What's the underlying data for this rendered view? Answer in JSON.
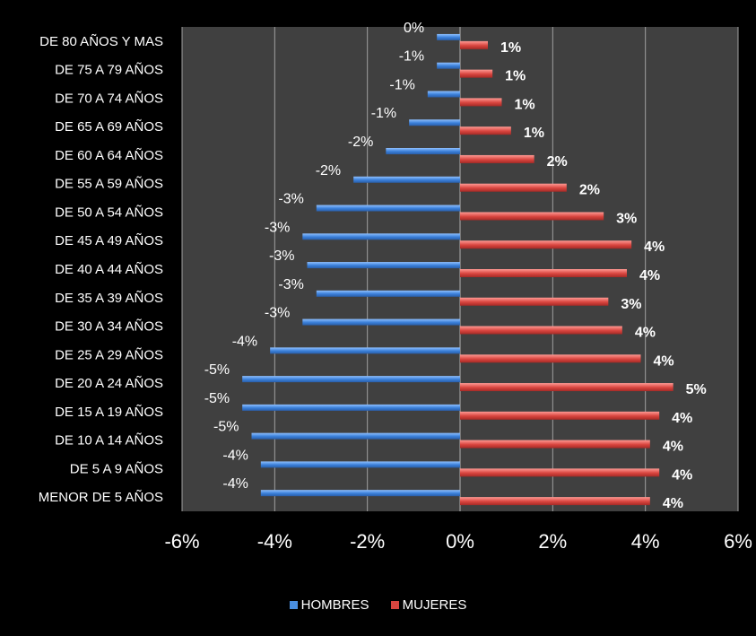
{
  "chart_data": {
    "type": "bar",
    "orientation": "horizontal",
    "categories": [
      "DE 80 AÑOS Y MAS",
      "DE 75 A 79 AÑOS",
      "DE 70 A 74 AÑOS",
      "DE 65 A 69 AÑOS",
      "DE 60 A 64 AÑOS",
      "DE 55 A 59 AÑOS",
      "DE 50 A 54 AÑOS",
      "DE 45 A 49 AÑOS",
      "DE 40 A 44 AÑOS",
      "DE 35 A 39 AÑOS",
      "DE 30 A 34 AÑOS",
      "DE 25 A 29 AÑOS",
      "DE 20 A 24 AÑOS",
      "DE 15 A 19 AÑOS",
      "DE 10 A 14 AÑOS",
      "DE 5 A 9 AÑOS",
      "MENOR DE 5 AÑOS"
    ],
    "series": [
      {
        "name": "HOMBRES",
        "color": "#4a90e2",
        "values": [
          -0.5,
          -0.5,
          -0.7,
          -1.1,
          -1.6,
          -2.3,
          -3.1,
          -3.4,
          -3.3,
          -3.1,
          -3.4,
          -4.1,
          -4.7,
          -4.7,
          -4.5,
          -4.3,
          -4.3
        ],
        "labels": [
          "0%",
          "-1%",
          "-1%",
          "-1%",
          "-2%",
          "-2%",
          "-3%",
          "-3%",
          "-3%",
          "-3%",
          "-3%",
          "-4%",
          "-5%",
          "-5%",
          "-5%",
          "-4%",
          "-4%"
        ]
      },
      {
        "name": "MUJERES",
        "color": "#d9453f",
        "values": [
          0.6,
          0.7,
          0.9,
          1.1,
          1.6,
          2.3,
          3.1,
          3.7,
          3.6,
          3.2,
          3.5,
          3.9,
          4.6,
          4.3,
          4.1,
          4.3,
          4.1
        ],
        "labels": [
          "1%",
          "1%",
          "1%",
          "1%",
          "2%",
          "2%",
          "3%",
          "4%",
          "4%",
          "3%",
          "4%",
          "4%",
          "5%",
          "4%",
          "4%",
          "4%",
          "4%"
        ]
      }
    ],
    "xlim": [
      -6,
      6
    ],
    "xticks": [
      "-6%",
      "-4%",
      "-2%",
      "0%",
      "2%",
      "4%",
      "6%"
    ],
    "xtick_values": [
      -6,
      -4,
      -2,
      0,
      2,
      4,
      6
    ],
    "grid": true,
    "legend_position": "bottom",
    "background": "#404040",
    "outer_background": "#000000",
    "grid_color": "#a0a0a0"
  }
}
